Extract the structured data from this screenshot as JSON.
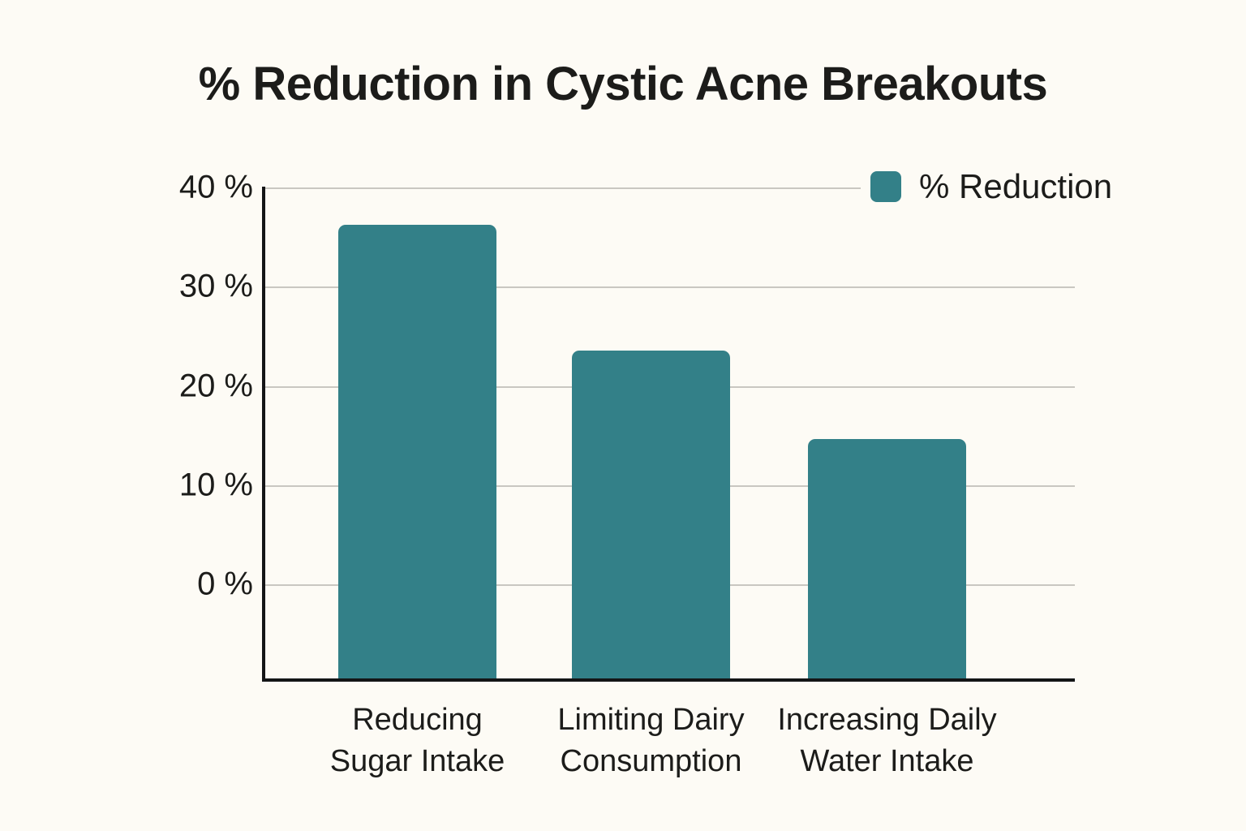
{
  "chart_data": {
    "type": "bar",
    "title": "% Reduction in Cystic Acne Breakouts",
    "categories": [
      "Reducing Sugar Intake",
      "Limiting Dairy Consumption",
      "Increasing Daily Water Intake"
    ],
    "category_lines": [
      [
        "Reducing",
        "Sugar Intake"
      ],
      [
        "Limiting Dairy",
        "Consumption"
      ],
      [
        "Increasing Daily",
        "Water Intake"
      ]
    ],
    "series": [
      {
        "name": "% Reduction",
        "values": [
          36.3,
          23.6,
          14.7
        ]
      }
    ],
    "yticks": [
      {
        "value": 40,
        "label": "40 %"
      },
      {
        "value": 30,
        "label": "30 %"
      },
      {
        "value": 20,
        "label": "20 %"
      },
      {
        "value": 10,
        "label": "10 %"
      },
      {
        "value": 0,
        "label": "0 %"
      }
    ],
    "ylim": [
      0,
      40
    ],
    "xlabel": "",
    "ylabel": "",
    "grid": true,
    "legend_position": "top-right",
    "colors": {
      "bar": "#338088",
      "grid": "#c9c7c1",
      "axis": "#141516",
      "text": "#1c1c1a",
      "background": "#fdfbf5"
    }
  }
}
